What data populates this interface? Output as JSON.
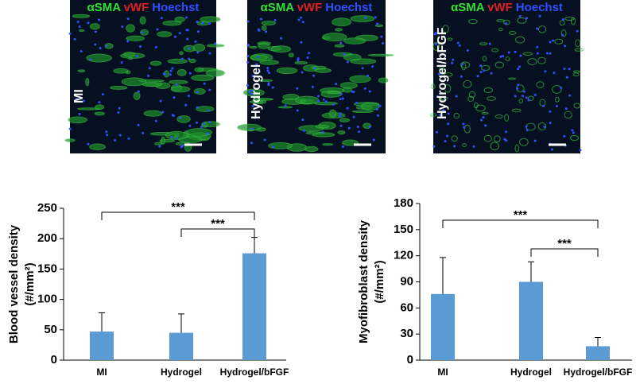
{
  "panels": {
    "stains": [
      {
        "name": "αSMA",
        "color": "#33e033"
      },
      {
        "name": "vWF",
        "color": "#e02020"
      },
      {
        "name": "Hoechst",
        "color": "#3050ff"
      }
    ],
    "labels": [
      "MI",
      "Hydrogel",
      "Hydrogel/bFGF"
    ]
  },
  "chart_data": [
    {
      "type": "bar",
      "ylabel": "Blood vessel density",
      "ylabel_unit": "(#/mm²)",
      "categories": [
        "MI",
        "Hydrogel",
        "Hydrogel/bFGF"
      ],
      "values": [
        47,
        45,
        176
      ],
      "errors": [
        31,
        31,
        26
      ],
      "color": "#5b9bd5",
      "ylim": [
        0,
        250
      ],
      "yticks": [
        0,
        50,
        100,
        150,
        200,
        250
      ],
      "significance": [
        {
          "from": 0,
          "to": 2,
          "label": "***"
        },
        {
          "from": 1,
          "to": 2,
          "label": "***"
        }
      ]
    },
    {
      "type": "bar",
      "ylabel": "Myofibroblast density",
      "ylabel_unit": "(#/mm²)",
      "categories": [
        "MI",
        "Hydrogel",
        "Hydrogel/bFGF"
      ],
      "values": [
        76,
        90,
        16
      ],
      "errors": [
        42,
        23,
        10
      ],
      "color": "#5b9bd5",
      "ylim": [
        0,
        180
      ],
      "yticks": [
        0,
        30,
        60,
        90,
        120,
        150,
        180
      ],
      "significance": [
        {
          "from": 0,
          "to": 2,
          "label": "***"
        },
        {
          "from": 1,
          "to": 2,
          "label": "***"
        }
      ]
    }
  ]
}
